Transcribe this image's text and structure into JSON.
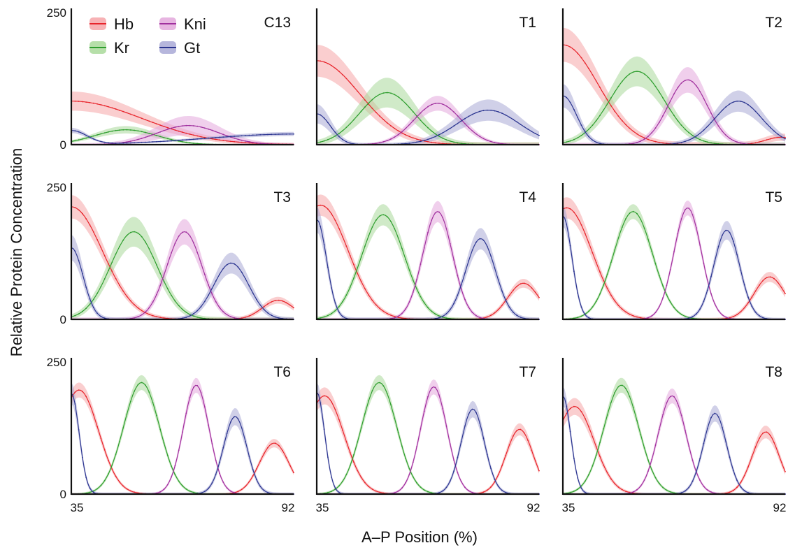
{
  "figure": {
    "ylabel": "Relative Protein Concentration",
    "xlabel": "A–P Position (%)"
  },
  "legend": {
    "placement": "top-left of first panel",
    "items": [
      {
        "name": "Hb",
        "color": "#e8242b"
      },
      {
        "name": "Kr",
        "color": "#2e9e2e"
      },
      {
        "name": "Kni",
        "color": "#a0309e"
      },
      {
        "name": "Gt",
        "color": "#2b3590"
      }
    ]
  },
  "colors": {
    "Hb": {
      "line": "#e8242b",
      "band": "#f6a5a8"
    },
    "Kr": {
      "line": "#2e9e2e",
      "band": "#a9d99a"
    },
    "Kni": {
      "line": "#a0309e",
      "band": "#e3a8dc"
    },
    "Gt": {
      "line": "#2b3590",
      "band": "#a9a9d6"
    }
  },
  "chart_data": [
    {
      "type": "line",
      "title": "C13",
      "x_range": [
        35,
        92
      ],
      "ylim": [
        0,
        250
      ],
      "y_ticks": [
        "250",
        "0"
      ],
      "x_ticks": [],
      "series": [
        {
          "name": "Hb",
          "peaks": [
            {
              "x": 35,
              "y": 82,
              "w": 18
            }
          ],
          "spread": 18
        },
        {
          "name": "Kr",
          "peaks": [
            {
              "x": 49,
              "y": 28,
              "w": 8
            }
          ],
          "spread": 7
        },
        {
          "name": "Kni",
          "peaks": [
            {
              "x": 65,
              "y": 36,
              "w": 8
            }
          ],
          "spread": 18
        },
        {
          "name": "Gt",
          "peaks": [
            {
              "x": 35,
              "y": 26,
              "w": 4
            },
            {
              "x": 92,
              "y": 20,
              "w": 22
            }
          ],
          "spread": 5
        }
      ]
    },
    {
      "type": "line",
      "title": "T1",
      "x_range": [
        35,
        92
      ],
      "ylim": [
        0,
        250
      ],
      "y_ticks": [],
      "x_ticks": [],
      "series": [
        {
          "name": "Hb",
          "peaks": [
            {
              "x": 35,
              "y": 158,
              "w": 11
            }
          ],
          "spread": 30
        },
        {
          "name": "Kr",
          "peaks": [
            {
              "x": 53,
              "y": 98,
              "w": 7
            }
          ],
          "spread": 28
        },
        {
          "name": "Kni",
          "peaks": [
            {
              "x": 66,
              "y": 78,
              "w": 6
            }
          ],
          "spread": 14
        },
        {
          "name": "Gt",
          "peaks": [
            {
              "x": 35,
              "y": 58,
              "w": 3.5
            },
            {
              "x": 79,
              "y": 65,
              "w": 8
            }
          ],
          "spread": 20
        }
      ]
    },
    {
      "type": "line",
      "title": "T2",
      "x_range": [
        35,
        92
      ],
      "ylim": [
        0,
        250
      ],
      "y_ticks": [],
      "x_ticks": [],
      "series": [
        {
          "name": "Hb",
          "peaks": [
            {
              "x": 35,
              "y": 188,
              "w": 9
            },
            {
              "x": 91,
              "y": 14,
              "w": 4
            }
          ],
          "spread": 32
        },
        {
          "name": "Kr",
          "peaks": [
            {
              "x": 54,
              "y": 138,
              "w": 7
            }
          ],
          "spread": 28
        },
        {
          "name": "Kni",
          "peaks": [
            {
              "x": 67,
              "y": 122,
              "w": 5
            }
          ],
          "spread": 24
        },
        {
          "name": "Gt",
          "peaks": [
            {
              "x": 35,
              "y": 92,
              "w": 3.5
            },
            {
              "x": 80,
              "y": 82,
              "w": 6
            }
          ],
          "spread": 22
        }
      ]
    },
    {
      "type": "line",
      "title": "T3",
      "x_range": [
        35,
        92
      ],
      "ylim": [
        0,
        250
      ],
      "y_ticks": [
        "250",
        "0"
      ],
      "x_ticks": [],
      "series": [
        {
          "name": "Hb",
          "peaks": [
            {
              "x": 35,
              "y": 212,
              "w": 8
            },
            {
              "x": 88,
              "y": 36,
              "w": 4
            }
          ],
          "spread": 22
        },
        {
          "name": "Kr",
          "peaks": [
            {
              "x": 51,
              "y": 165,
              "w": 6
            }
          ],
          "spread": 28
        },
        {
          "name": "Kni",
          "peaks": [
            {
              "x": 64,
              "y": 165,
              "w": 4.5
            }
          ],
          "spread": 24
        },
        {
          "name": "Gt",
          "peaks": [
            {
              "x": 35,
              "y": 135,
              "w": 3
            },
            {
              "x": 76,
              "y": 106,
              "w": 4.5
            }
          ],
          "spread": 24
        }
      ]
    },
    {
      "type": "line",
      "title": "T4",
      "x_range": [
        35,
        92
      ],
      "ylim": [
        0,
        250
      ],
      "y_ticks": [],
      "x_ticks": [],
      "series": [
        {
          "name": "Hb",
          "peaks": [
            {
              "x": 36,
              "y": 215,
              "w": 7
            },
            {
              "x": 88,
              "y": 68,
              "w": 4
            }
          ],
          "spread": 20
        },
        {
          "name": "Kr",
          "peaks": [
            {
              "x": 52,
              "y": 197,
              "w": 5.5
            }
          ],
          "spread": 20
        },
        {
          "name": "Kni",
          "peaks": [
            {
              "x": 66,
              "y": 203,
              "w": 3.8
            }
          ],
          "spread": 20
        },
        {
          "name": "Gt",
          "peaks": [
            {
              "x": 35,
              "y": 188,
              "w": 2.5
            },
            {
              "x": 77,
              "y": 152,
              "w": 3.8
            }
          ],
          "spread": 24
        }
      ]
    },
    {
      "type": "line",
      "title": "T5",
      "x_range": [
        35,
        92
      ],
      "ylim": [
        0,
        250
      ],
      "y_ticks": [],
      "x_ticks": [],
      "series": [
        {
          "name": "Hb",
          "peaks": [
            {
              "x": 36,
              "y": 210,
              "w": 6.5
            },
            {
              "x": 88,
              "y": 80,
              "w": 4
            }
          ],
          "spread": 20
        },
        {
          "name": "Kr",
          "peaks": [
            {
              "x": 53,
              "y": 203,
              "w": 5
            }
          ],
          "spread": 14
        },
        {
          "name": "Kni",
          "peaks": [
            {
              "x": 67,
              "y": 210,
              "w": 3.5
            }
          ],
          "spread": 14
        },
        {
          "name": "Gt",
          "peaks": [
            {
              "x": 35,
              "y": 195,
              "w": 2.3
            },
            {
              "x": 77,
              "y": 168,
              "w": 3.3
            }
          ],
          "spread": 20
        }
      ]
    },
    {
      "type": "line",
      "title": "T6",
      "x_range": [
        35,
        92
      ],
      "ylim": [
        0,
        250
      ],
      "y_ticks": [
        "250",
        "0"
      ],
      "x_ticks": [
        "35",
        "92"
      ],
      "series": [
        {
          "name": "Hb",
          "peaks": [
            {
              "x": 37,
              "y": 196,
              "w": 5
            },
            {
              "x": 87,
              "y": 96,
              "w": 3.8
            }
          ],
          "spread": 14
        },
        {
          "name": "Kr",
          "peaks": [
            {
              "x": 53,
              "y": 210,
              "w": 4.6
            }
          ],
          "spread": 14
        },
        {
          "name": "Kni",
          "peaks": [
            {
              "x": 67,
              "y": 205,
              "w": 3.3
            }
          ],
          "spread": 14
        },
        {
          "name": "Gt",
          "peaks": [
            {
              "x": 35,
              "y": 190,
              "w": 2
            },
            {
              "x": 77,
              "y": 146,
              "w": 3
            }
          ],
          "spread": 20
        }
      ]
    },
    {
      "type": "line",
      "title": "T7",
      "x_range": [
        35,
        92
      ],
      "ylim": [
        0,
        250
      ],
      "y_ticks": [],
      "x_ticks": [
        "35",
        "92"
      ],
      "series": [
        {
          "name": "Hb",
          "peaks": [
            {
              "x": 37,
              "y": 185,
              "w": 5
            },
            {
              "x": 87,
              "y": 122,
              "w": 3.5
            }
          ],
          "spread": 16
        },
        {
          "name": "Kr",
          "peaks": [
            {
              "x": 51,
              "y": 210,
              "w": 4.5
            }
          ],
          "spread": 14
        },
        {
          "name": "Kni",
          "peaks": [
            {
              "x": 65,
              "y": 202,
              "w": 3.4
            }
          ],
          "spread": 14
        },
        {
          "name": "Gt",
          "peaks": [
            {
              "x": 35,
              "y": 192,
              "w": 2
            },
            {
              "x": 75,
              "y": 160,
              "w": 3
            }
          ],
          "spread": 18
        }
      ]
    },
    {
      "type": "line",
      "title": "T8",
      "x_range": [
        35,
        92
      ],
      "ylim": [
        0,
        250
      ],
      "y_ticks": [],
      "x_ticks": [
        "35",
        "92"
      ],
      "series": [
        {
          "name": "Hb",
          "peaks": [
            {
              "x": 38,
              "y": 165,
              "w": 5
            },
            {
              "x": 87,
              "y": 117,
              "w": 3.5
            }
          ],
          "spread": 16
        },
        {
          "name": "Kr",
          "peaks": [
            {
              "x": 50,
              "y": 205,
              "w": 4.5
            }
          ],
          "spread": 14
        },
        {
          "name": "Kni",
          "peaks": [
            {
              "x": 63,
              "y": 185,
              "w": 3.6
            }
          ],
          "spread": 14
        },
        {
          "name": "Gt",
          "peaks": [
            {
              "x": 35,
              "y": 185,
              "w": 2
            },
            {
              "x": 74,
              "y": 152,
              "w": 3
            }
          ],
          "spread": 18
        }
      ]
    }
  ]
}
